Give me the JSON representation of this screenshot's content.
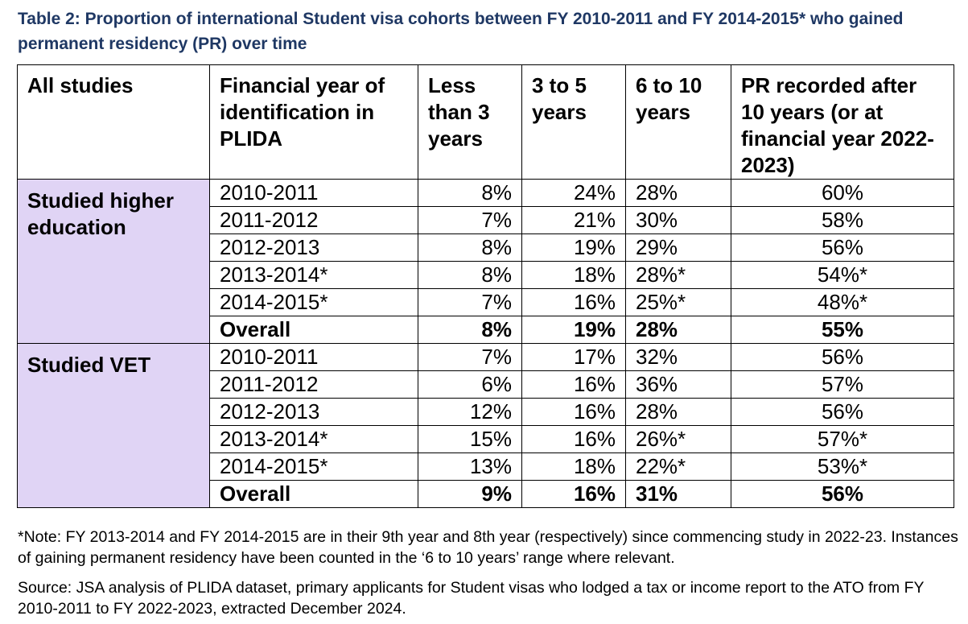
{
  "caption": "Table 2: Proportion of international Student visa cohorts between FY 2010-2011 and FY 2014-2015* who gained permanent residency (PR) over time",
  "table": {
    "headers": [
      "All studies",
      "Financial year of identification in PLIDA",
      "Less than 3 years",
      "3 to 5 years",
      "6 to 10 years",
      "PR recorded after 10 years (or at financial year 2022-2023)"
    ],
    "groups": [
      {
        "label": "Studied higher education",
        "rows": [
          [
            "2010-2011",
            "8%",
            "24%",
            "28%",
            "60%"
          ],
          [
            "2011-2012",
            "7%",
            "21%",
            "30%",
            "58%"
          ],
          [
            "2012-2013",
            "8%",
            "19%",
            "29%",
            "56%"
          ],
          [
            "2013-2014*",
            "8%",
            "18%",
            "28%*",
            "54%*"
          ],
          [
            "2014-2015*",
            "7%",
            "16%",
            "25%*",
            "48%*"
          ],
          [
            "Overall",
            "8%",
            "19%",
            "28%",
            "55%"
          ]
        ]
      },
      {
        "label": "Studied VET",
        "rows": [
          [
            "2010-2011",
            "7%",
            "17%",
            "32%",
            "56%"
          ],
          [
            "2011-2012",
            "6%",
            "16%",
            "36%",
            "57%"
          ],
          [
            "2012-2013",
            "12%",
            "16%",
            "28%",
            "56%"
          ],
          [
            "2013-2014*",
            "15%",
            "16%",
            "26%*",
            "57%*"
          ],
          [
            "2014-2015*",
            "13%",
            "18%",
            "22%*",
            "53%*"
          ],
          [
            "Overall",
            "9%",
            "16%",
            "31%",
            "56%"
          ]
        ]
      }
    ]
  },
  "note": "*Note: FY 2013-2014 and FY 2014-2015 are in their 9th year and 8th year (respectively) since commencing study in 2022-23. Instances of gaining permanent residency have been counted in the ‘6 to 10 years’ range where relevant.",
  "source": "Source: JSA analysis of PLIDA dataset, primary applicants for Student visas who lodged a tax or income report to the ATO from FY 2010-2011 to FY 2022-2023, extracted December 2024.",
  "colors": {
    "caption": "#1f3864",
    "group_fill": "#e0d4f5"
  }
}
